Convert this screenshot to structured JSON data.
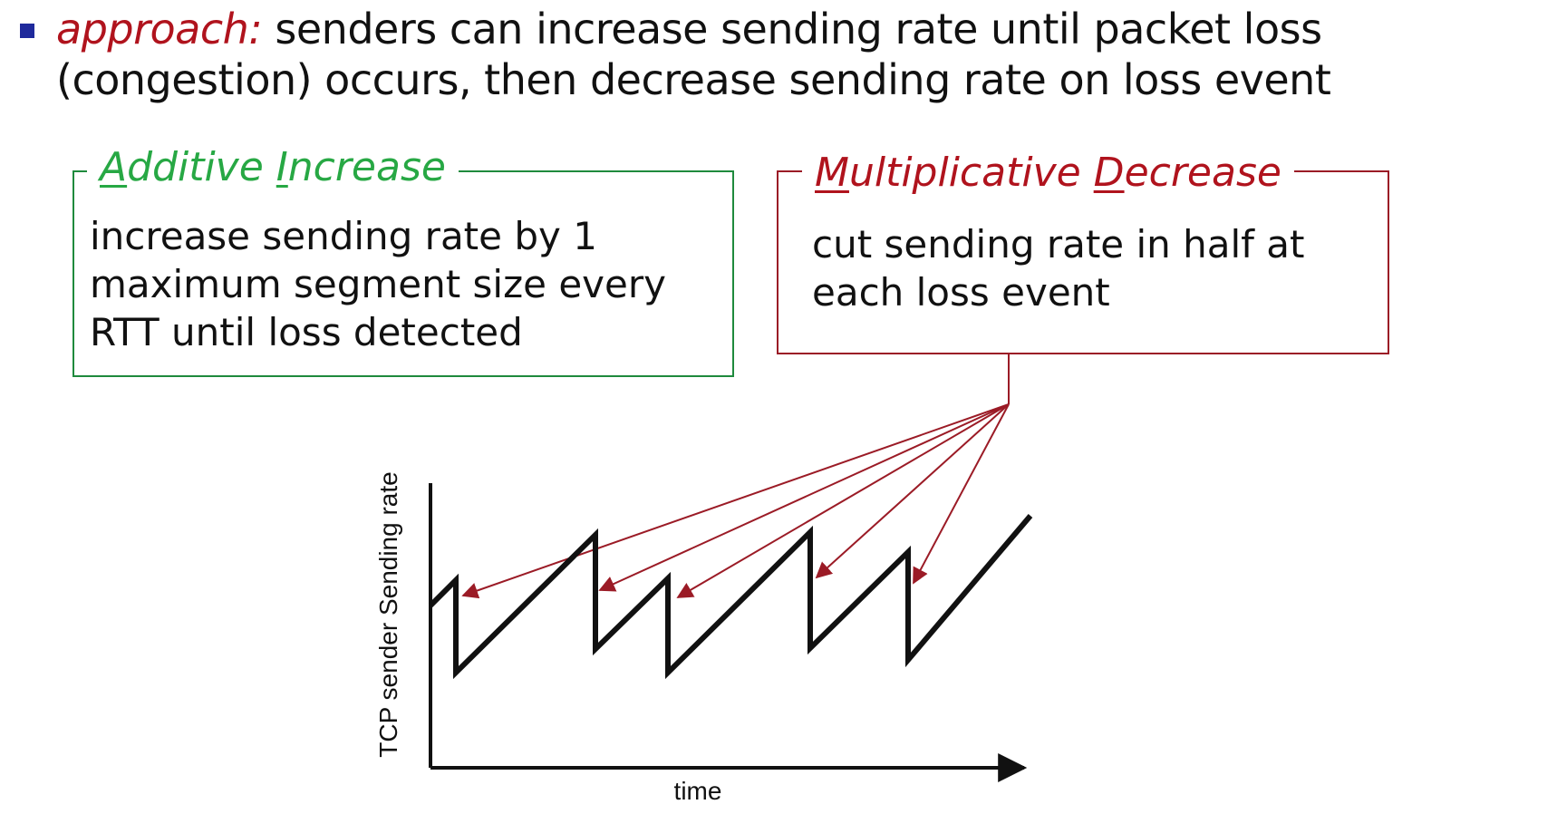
{
  "intro": {
    "lead": "approach:",
    "rest_line1": " senders can increase sending rate until packet loss",
    "line2": "(congestion) occurs, then decrease sending rate on loss event"
  },
  "additive_box": {
    "title_a": "A",
    "title_rest1": "dditive ",
    "title_i": "I",
    "title_rest2": "ncrease",
    "line1": "increase sending rate by 1",
    "line2": "maximum segment size every",
    "line3": "RTT until loss detected"
  },
  "multiplicative_box": {
    "title_m": "M",
    "title_rest1": "ultiplicative ",
    "title_d": "D",
    "title_rest2": "ecrease",
    "line1": "cut sending rate in half at",
    "line2": "each loss event"
  },
  "plot": {
    "ylabel": "TCP sender  Sending rate",
    "xlabel": "time"
  },
  "colors": {
    "accent_red": "#b0131d",
    "accent_green": "#27a844",
    "bullet_blue": "#1f2a9c"
  }
}
